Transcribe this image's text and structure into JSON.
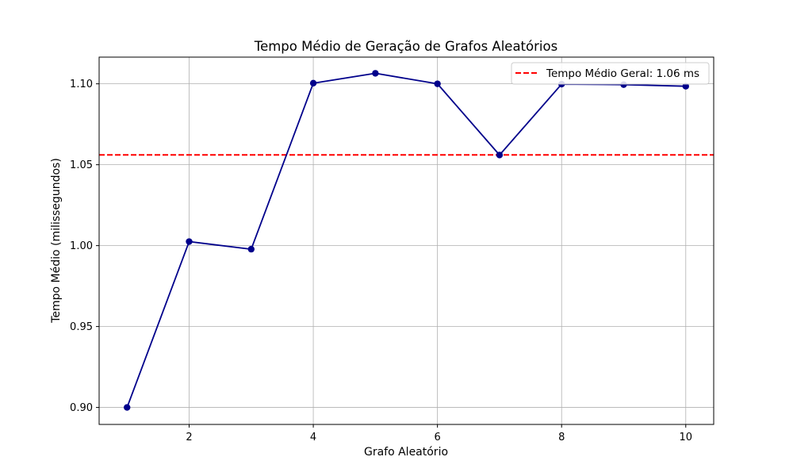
{
  "chart_data": {
    "type": "line",
    "title": "Tempo Médio de Geração de Grafos Aleatórios",
    "xlabel": "Grafo Aleatório",
    "ylabel": "Tempo Médio (milissegundos)",
    "xlim": [
      0.55,
      10.45
    ],
    "ylim": [
      0.8895,
      1.1165
    ],
    "xticks": [
      2,
      4,
      6,
      8,
      10
    ],
    "yticks": [
      0.9,
      0.95,
      1.0,
      1.05,
      1.1
    ],
    "ytick_labels": [
      "0.90",
      "0.95",
      "1.00",
      "1.05",
      "1.10"
    ],
    "grid": true,
    "legend_position": "top-right",
    "series": [
      {
        "x": [
          1,
          2,
          3,
          4,
          5,
          6,
          7,
          8,
          9,
          10
        ],
        "values": [
          0.9,
          1.0025,
          0.9978,
          1.1004,
          1.1065,
          1.1,
          1.056,
          1.0998,
          1.0995,
          1.0985
        ],
        "color": "#00008b",
        "marker": "circle"
      }
    ],
    "reference_line": {
      "label": "Tempo Médio Geral: 1.06 ms",
      "value": 1.0561,
      "color": "#ff0000",
      "style": "dashed"
    }
  }
}
